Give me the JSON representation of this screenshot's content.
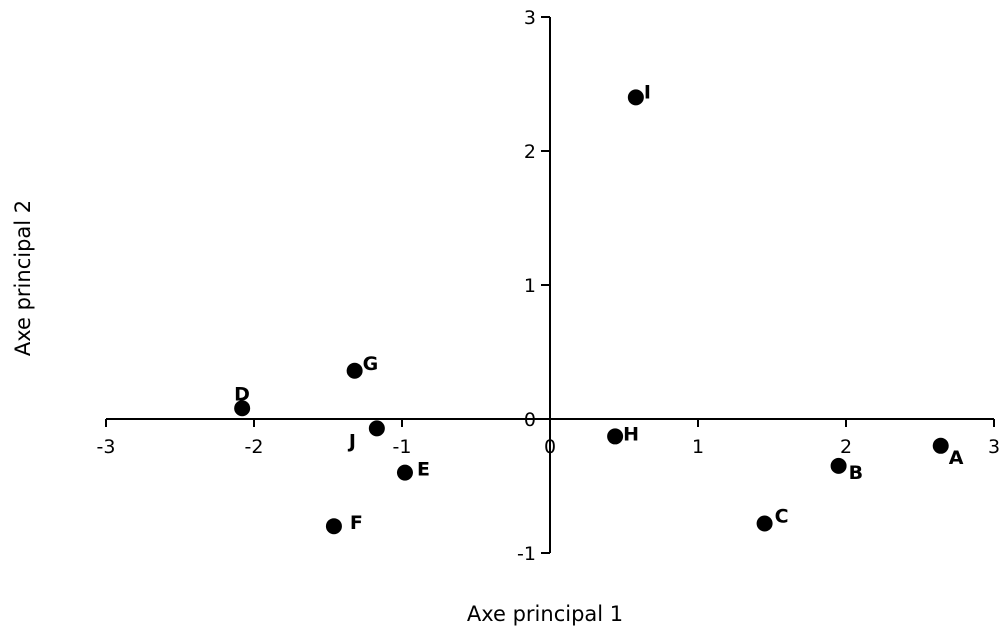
{
  "chart_data": {
    "type": "scatter",
    "title": "",
    "xlabel": "Axe principal 1",
    "ylabel": "Axe principal 2",
    "xlim": [
      -3,
      3
    ],
    "ylim": [
      -1,
      3
    ],
    "xticks": [
      -3,
      -2,
      -1,
      0,
      1,
      2,
      3
    ],
    "yticks": [
      -1,
      0,
      1,
      2,
      3
    ],
    "grid": false,
    "legend": "none",
    "marker_color": "#000000",
    "points": [
      {
        "label": "A",
        "x": 2.64,
        "y": -0.2
      },
      {
        "label": "B",
        "x": 1.95,
        "y": -0.35
      },
      {
        "label": "C",
        "x": 1.45,
        "y": -0.78
      },
      {
        "label": "D",
        "x": -2.08,
        "y": 0.08
      },
      {
        "label": "E",
        "x": -0.98,
        "y": -0.4
      },
      {
        "label": "F",
        "x": -1.46,
        "y": -0.8
      },
      {
        "label": "G",
        "x": -1.32,
        "y": 0.36
      },
      {
        "label": "H",
        "x": 0.44,
        "y": -0.13
      },
      {
        "label": "I",
        "x": 0.58,
        "y": 2.4
      },
      {
        "label": "J",
        "x": -1.17,
        "y": -0.07
      }
    ]
  }
}
